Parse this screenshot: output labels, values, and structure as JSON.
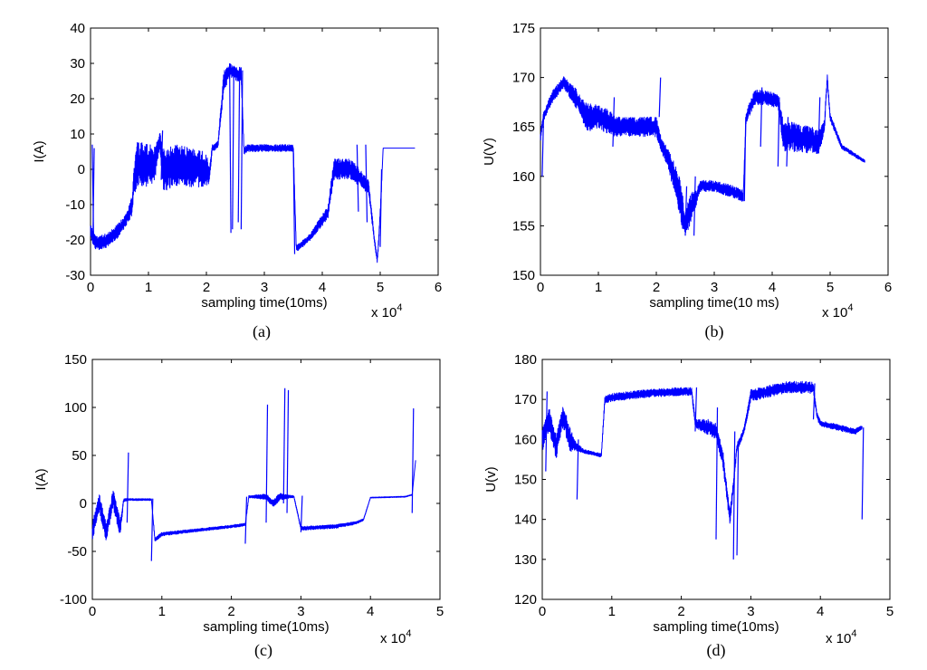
{
  "figure": {
    "layout": "2x2 panels"
  },
  "chart_data": [
    {
      "type": "line",
      "caption": "(a)",
      "xlabel": "sampling time(10ms)",
      "ylabel": "I(A)",
      "xlim": [
        0,
        6
      ],
      "ylim": [
        -30,
        40
      ],
      "x_ticks": [
        "0",
        "1",
        "2",
        "3",
        "4",
        "5",
        "6"
      ],
      "y_ticks": [
        "-30",
        "-20",
        "-10",
        "0",
        "10",
        "20",
        "30",
        "40"
      ],
      "x_multiplier": {
        "base": "x 10",
        "exp": "4"
      },
      "series": [
        {
          "name": "I",
          "color": "#0000ff",
          "x": [
            0,
            0.05,
            0.1,
            0.3,
            0.5,
            0.65,
            0.72,
            0.75,
            0.8,
            1.0,
            1.1,
            1.15,
            1.2,
            1.25,
            1.3,
            1.5,
            2.0,
            2.05,
            2.1,
            2.2,
            2.3,
            2.4,
            2.5,
            2.6,
            2.65,
            2.7,
            2.8,
            3.0,
            3.2,
            3.5,
            3.55,
            3.6,
            3.8,
            4.1,
            4.2,
            4.5,
            4.8,
            4.9,
            4.95,
            5.0,
            5.05,
            5.2,
            5.6
          ],
          "y": [
            -17,
            -20,
            -21,
            -20,
            -17,
            -13,
            -10,
            -3,
            1,
            1,
            1,
            5,
            8,
            0,
            0,
            1,
            0,
            -2,
            6,
            7,
            25,
            28,
            27,
            27,
            5,
            6,
            6,
            6,
            6,
            6,
            -22,
            -22,
            -19,
            -12,
            0,
            0,
            -5,
            -20,
            -26,
            -13,
            6,
            6,
            6
          ],
          "band": [
            4,
            4,
            4,
            4,
            4,
            4,
            6,
            8,
            14,
            12,
            12,
            6,
            6,
            12,
            12,
            12,
            10,
            4,
            2,
            2,
            6,
            4,
            4,
            4,
            2,
            2,
            2,
            2,
            2,
            2,
            2,
            2,
            2,
            4,
            6,
            6,
            4,
            2,
            2,
            4,
            0,
            0,
            0
          ],
          "spikes": [
            [
              0.03,
              7,
              -20
            ],
            [
              0.04,
              -21,
              6
            ],
            [
              1.22,
              -3,
              11
            ],
            [
              2.4,
              30,
              -18
            ],
            [
              2.45,
              -17,
              29
            ],
            [
              2.6,
              -17,
              28
            ],
            [
              2.55,
              -15,
              29
            ],
            [
              3.5,
              6,
              -24
            ],
            [
              4.6,
              7,
              -12
            ],
            [
              4.75,
              7,
              -15
            ],
            [
              5.0,
              -22,
              0
            ]
          ]
        }
      ]
    },
    {
      "type": "line",
      "caption": "(b)",
      "xlabel": "sampling time(10 ms)",
      "ylabel": "U(V)",
      "xlim": [
        0,
        6
      ],
      "ylim": [
        150,
        175
      ],
      "x_ticks": [
        "0",
        "1",
        "2",
        "3",
        "4",
        "5",
        "6"
      ],
      "y_ticks": [
        "150",
        "155",
        "160",
        "165",
        "170",
        "175"
      ],
      "x_multiplier": {
        "base": "x 10",
        "exp": "4"
      },
      "series": [
        {
          "name": "U",
          "color": "#0000ff",
          "x": [
            0,
            0.05,
            0.2,
            0.4,
            0.6,
            0.7,
            0.8,
            1.0,
            1.2,
            1.3,
            1.5,
            2.0,
            2.1,
            2.2,
            2.4,
            2.5,
            2.6,
            2.7,
            2.75,
            3.0,
            3.3,
            3.5,
            3.55,
            3.7,
            3.9,
            4.1,
            4.2,
            4.4,
            4.8,
            4.9,
            4.95,
            5.0,
            5.2,
            5.6
          ],
          "y": [
            164,
            166,
            168,
            169.5,
            168,
            167,
            166,
            166,
            165.5,
            165,
            165,
            165,
            163,
            162,
            158,
            155,
            157,
            158,
            159,
            159,
            158.5,
            158,
            166,
            168,
            168,
            167.5,
            164,
            164,
            163.5,
            165,
            170,
            166,
            163,
            161.5
          ],
          "band": [
            1,
            1,
            1.2,
            1.2,
            2,
            2,
            3,
            2.5,
            2.5,
            2,
            2,
            2,
            1.5,
            2,
            4,
            3,
            3,
            1.5,
            1.2,
            1.2,
            1.2,
            1.2,
            1.2,
            1.5,
            1.5,
            1.5,
            3,
            3,
            2.5,
            1.5,
            1,
            0.8,
            0.5,
            0.3
          ],
          "spikes": [
            [
              0.03,
              160,
              166
            ],
            [
              1.25,
              163,
              168
            ],
            [
              2.05,
              166,
              170
            ],
            [
              2.5,
              154,
              159
            ],
            [
              2.65,
              154,
              160
            ],
            [
              3.52,
              157.5,
              166
            ],
            [
              3.8,
              163,
              169
            ],
            [
              4.1,
              161,
              168
            ],
            [
              4.25,
              161,
              166
            ],
            [
              4.8,
              163,
              168
            ]
          ]
        }
      ]
    },
    {
      "type": "line",
      "caption": "(c)",
      "xlabel": "sampling time(10ms)",
      "ylabel": "I(A)",
      "xlim": [
        0,
        5
      ],
      "ylim": [
        -100,
        150
      ],
      "x_ticks": [
        "0",
        "1",
        "2",
        "3",
        "4",
        "5"
      ],
      "y_ticks": [
        "-100",
        "-50",
        "0",
        "50",
        "100",
        "150"
      ],
      "x_multiplier": {
        "base": "x 10",
        "exp": "4"
      },
      "series": [
        {
          "name": "I",
          "color": "#0000ff",
          "x": [
            0,
            0.1,
            0.2,
            0.3,
            0.4,
            0.45,
            0.5,
            0.6,
            0.85,
            0.9,
            1.0,
            1.5,
            2.0,
            2.2,
            2.25,
            2.5,
            2.6,
            2.7,
            2.8,
            2.9,
            3.0,
            3.5,
            3.8,
            3.9,
            4.0,
            4.5,
            4.6,
            4.65
          ],
          "y": [
            -30,
            0,
            -30,
            5,
            -25,
            3,
            4,
            4,
            4,
            -38,
            -32,
            -28,
            -24,
            -22,
            7,
            7,
            0,
            7,
            7,
            7,
            -26,
            -24,
            -20,
            -17,
            6,
            7,
            9,
            45
          ],
          "band": [
            20,
            20,
            20,
            20,
            20,
            4,
            2,
            2,
            2,
            4,
            4,
            3,
            3,
            3,
            2,
            6,
            8,
            8,
            4,
            2,
            4,
            4,
            3,
            2,
            1,
            1,
            1,
            0
          ],
          "spikes": [
            [
              0.5,
              -20,
              53
            ],
            [
              0.85,
              -60,
              5
            ],
            [
              2.2,
              -42,
              7
            ],
            [
              2.5,
              -20,
              103
            ],
            [
              2.75,
              0,
              120
            ],
            [
              2.8,
              -10,
              118
            ],
            [
              3.0,
              -30,
              8
            ],
            [
              4.6,
              -10,
              99
            ]
          ]
        }
      ]
    },
    {
      "type": "line",
      "caption": "(d)",
      "xlabel": "sampling time(10ms)",
      "ylabel": "U(v)",
      "xlim": [
        0,
        5
      ],
      "ylim": [
        120,
        180
      ],
      "x_ticks": [
        "0",
        "1",
        "2",
        "3",
        "4",
        "5"
      ],
      "y_ticks": [
        "120",
        "130",
        "140",
        "150",
        "160",
        "170",
        "180"
      ],
      "x_multiplier": {
        "base": "x 10",
        "exp": "4"
      },
      "series": [
        {
          "name": "U",
          "color": "#0000ff",
          "x": [
            0,
            0.1,
            0.2,
            0.3,
            0.4,
            0.5,
            0.6,
            0.85,
            0.9,
            1.0,
            1.5,
            2.0,
            2.15,
            2.2,
            2.4,
            2.5,
            2.6,
            2.7,
            2.8,
            2.9,
            3.0,
            3.5,
            3.9,
            3.95,
            4.0,
            4.5,
            4.6
          ],
          "y": [
            160,
            165,
            158,
            166,
            160,
            158,
            157,
            156,
            170,
            170.5,
            171.5,
            172,
            172,
            164,
            163,
            162,
            155,
            140,
            158,
            162,
            171,
            173,
            173,
            166,
            164,
            162,
            163
          ],
          "band": [
            6,
            6,
            6,
            6,
            6,
            2,
            1,
            1,
            2,
            2,
            2,
            2,
            2,
            2,
            4,
            4,
            4,
            4,
            2,
            2,
            3,
            3,
            3,
            2,
            1.5,
            1.5,
            1
          ],
          "spikes": [
            [
              0.05,
              152,
              172
            ],
            [
              0.5,
              145,
              160
            ],
            [
              2.2,
              162,
              173
            ],
            [
              2.5,
              135,
              168
            ],
            [
              2.75,
              130,
              162
            ],
            [
              2.8,
              131,
              158
            ],
            [
              3.9,
              165,
              174
            ],
            [
              4.6,
              140,
              163
            ]
          ]
        }
      ]
    }
  ]
}
